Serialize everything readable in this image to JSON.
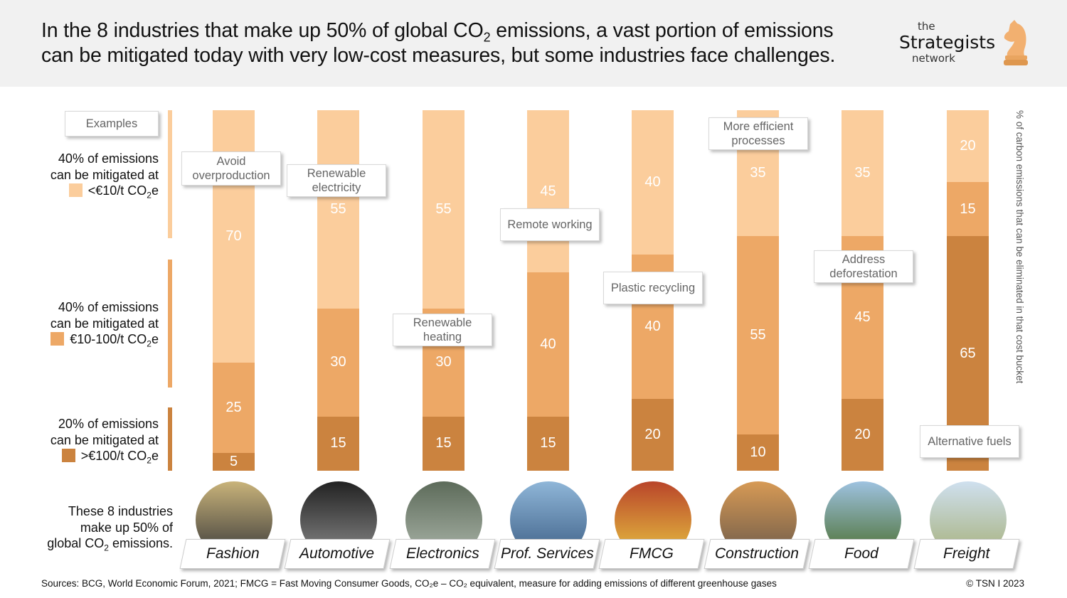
{
  "header": {
    "title_line1_pre": "In the 8 industries that make up 50% of global CO",
    "title_sub": "2",
    "title_line1_post": " emissions, a vast portion of emissions",
    "title_line2": "can be mitigated today with very low-cost measures, but some industries face challenges.",
    "logo": {
      "the": "the",
      "name": "Strategists",
      "network": "network"
    }
  },
  "legend": {
    "examples": "Examples",
    "items": [
      {
        "l1": "40% of emissions",
        "l2": "can be mitigated at",
        "l3": "<€10/t CO",
        "sub": "2",
        "suf": "e",
        "color": "#FBCD9C"
      },
      {
        "l1": "40% of emissions",
        "l2": "can be mitigated at",
        "l3": "€10-100/t CO",
        "sub": "2",
        "suf": "e",
        "color": "#EDA866"
      },
      {
        "l1": "20% of emissions",
        "l2": "can be mitigated at",
        "l3": ">€100/t CO",
        "sub": "2",
        "suf": "e",
        "color": "#CB833F"
      }
    ]
  },
  "industries_note": {
    "l1": "These 8 industries",
    "l2": "make up 50% of",
    "l3a": "global CO",
    "sub": "2",
    "l3b": " emissions."
  },
  "chart_data": {
    "type": "bar",
    "stacked": true,
    "orientation": "vertical",
    "ylim": [
      0,
      100
    ],
    "ylabel": "% of carbon emissions that can be eliminated in that cost bucket",
    "categories": [
      "Fashion",
      "Automotive",
      "Electronics",
      "Prof. Services",
      "FMCG",
      "Construction",
      "Food",
      "Freight"
    ],
    "series": [
      {
        "name": "<€10/t CO2e",
        "color": "#FBCD9C",
        "values": [
          70,
          55,
          55,
          45,
          40,
          35,
          35,
          20
        ]
      },
      {
        "name": "€10-100/t CO2e",
        "color": "#EDA866",
        "values": [
          25,
          30,
          30,
          40,
          40,
          55,
          45,
          15
        ]
      },
      {
        "name": ">€100/t CO2e",
        "color": "#CB833F",
        "values": [
          5,
          15,
          15,
          15,
          20,
          10,
          20,
          65
        ]
      }
    ],
    "examples": [
      "Avoid overproduction",
      "Renewable electricity",
      "Renewable heating",
      "Remote working",
      "Plastic recycling",
      "More efficient processes",
      "Address deforestation",
      "Alternative fuels"
    ]
  },
  "footer": {
    "sources": "Sources: BCG, World Economic Forum, 2021; FMCG = Fast Moving Consumer Goods, CO₂e – CO₂ equivalent, measure for adding emissions of different greenhouse gases",
    "copyright": "© TSN  I  2023"
  }
}
